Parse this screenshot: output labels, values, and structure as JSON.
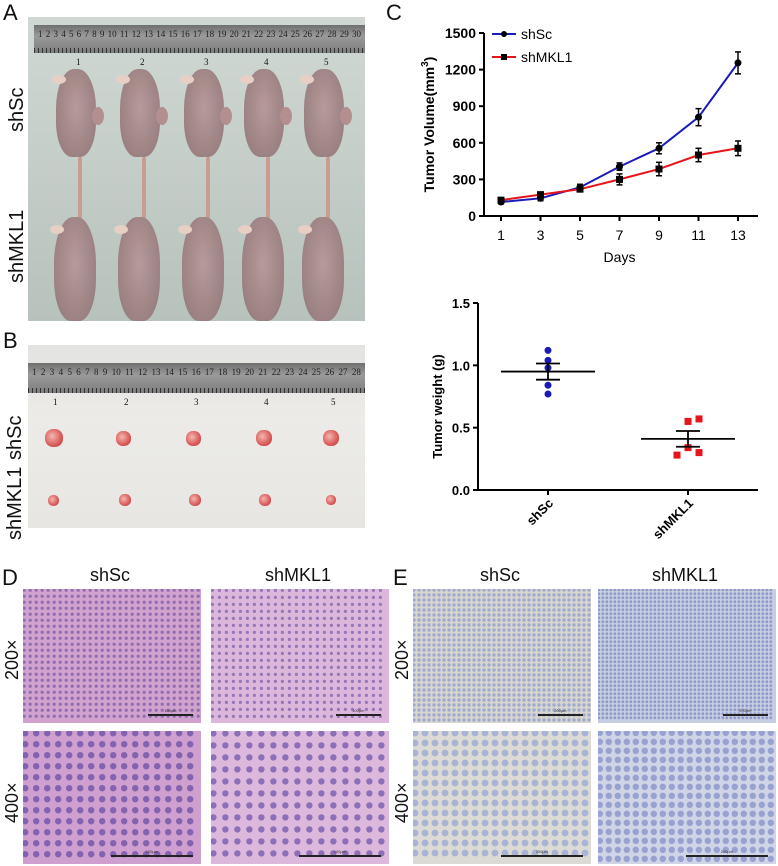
{
  "panels": {
    "A": {
      "label": "A",
      "row_labels": [
        "shSc",
        "shMKL1"
      ],
      "ruler_numbers": [
        "1",
        "2",
        "3",
        "4",
        "5",
        "6",
        "7",
        "8",
        "9",
        "10",
        "11",
        "12",
        "13",
        "14",
        "15",
        "16",
        "17",
        "18",
        "19",
        "20",
        "21",
        "22",
        "23",
        "24",
        "25",
        "26",
        "27",
        "28",
        "29",
        "30"
      ],
      "mouse_numbers": [
        "1",
        "2",
        "3",
        "4",
        "5"
      ]
    },
    "B": {
      "label": "B",
      "row_labels": [
        "shSc",
        "shMKL1"
      ],
      "ruler_numbers": [
        "1",
        "2",
        "3",
        "4",
        "5",
        "6",
        "7",
        "8",
        "9",
        "10",
        "11",
        "12",
        "13",
        "14",
        "15",
        "16",
        "17",
        "18",
        "19",
        "20",
        "21",
        "22",
        "23",
        "24",
        "25",
        "26",
        "27",
        "28"
      ],
      "tumor_numbers": [
        "1",
        "2",
        "3",
        "4",
        "5"
      ]
    },
    "C": {
      "label": "C"
    },
    "D": {
      "label": "D",
      "col_titles": [
        "shSc",
        "shMKL1"
      ],
      "row_labels": [
        "200×",
        "400×"
      ],
      "scale_text": "100μm",
      "colors": {
        "bg": "#c98fc4",
        "nuclei": "#6c4fa3",
        "stroma": "#e9c9e3"
      }
    },
    "E": {
      "label": "E",
      "col_titles": [
        "shSc",
        "shMKL1"
      ],
      "row_labels": [
        "200×",
        "400×"
      ],
      "scale_text": "200μm",
      "colors": {
        "brown": "#a9814d",
        "blue": "#8d9ccf",
        "bg": "#dcdde6"
      }
    }
  },
  "chart_data": [
    {
      "type": "line",
      "title": "",
      "xlabel": "Days",
      "ylabel": "Tumor Volume(mm3)",
      "x": [
        1,
        3,
        5,
        7,
        9,
        11,
        13
      ],
      "xlim": [
        0,
        14
      ],
      "ylim": [
        0,
        1500
      ],
      "yticks": [
        0,
        300,
        600,
        900,
        1200,
        1500
      ],
      "legend_position": "top-left",
      "grid": false,
      "series": [
        {
          "name": "shSc",
          "color": "#1a1ab8",
          "marker": "circle",
          "values": [
            115,
            145,
            235,
            405,
            555,
            810,
            1255
          ],
          "errors": [
            15,
            20,
            25,
            30,
            45,
            70,
            90
          ]
        },
        {
          "name": "shMKL1",
          "color": "#e8141c",
          "marker": "square",
          "values": [
            130,
            175,
            220,
            300,
            385,
            500,
            555
          ],
          "errors": [
            15,
            20,
            20,
            45,
            55,
            55,
            60
          ]
        }
      ]
    },
    {
      "type": "scatter",
      "title": "",
      "xlabel": "",
      "ylabel": "Tumor weight (g)",
      "categories": [
        "shSc",
        "shMKL1"
      ],
      "ylim": [
        0,
        1.5
      ],
      "yticks": [
        "0.0",
        "0.5",
        "1.0",
        "1.5"
      ],
      "grid": false,
      "series": [
        {
          "name": "shSc",
          "color": "#1a1ab8",
          "marker": "circle",
          "values": [
            1.12,
            1.04,
            0.98,
            0.84,
            0.77
          ],
          "mean": 0.95,
          "sem": 0.065
        },
        {
          "name": "shMKL1",
          "color": "#e8141c",
          "marker": "square",
          "values": [
            0.57,
            0.55,
            0.34,
            0.3,
            0.28
          ],
          "mean": 0.41,
          "sem": 0.063
        }
      ]
    }
  ]
}
